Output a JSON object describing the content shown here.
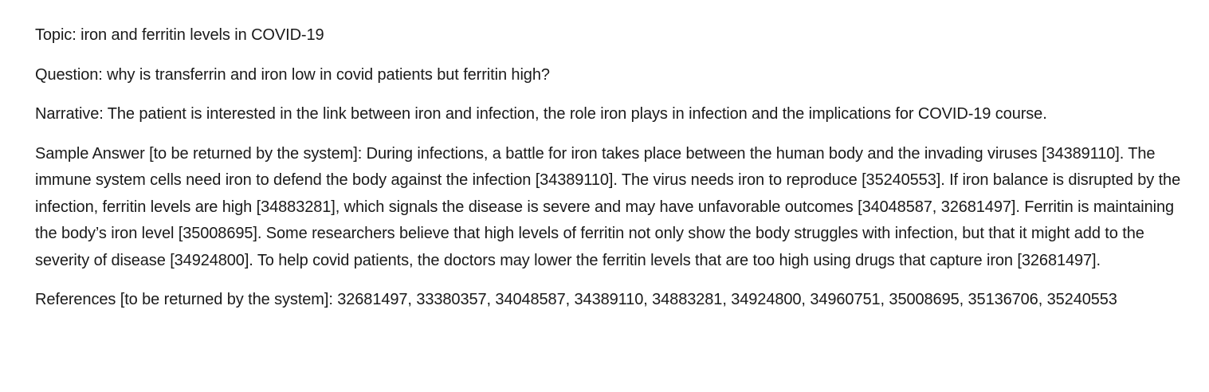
{
  "topic": "Topic: iron and ferritin levels in COVID-19",
  "question": "Question: why is transferrin and iron low in covid patients but ferritin high?",
  "narrative": "Narrative: The patient is interested in the link between iron and infection, the role iron plays in infection and the implications for COVID-19 course.",
  "sample_answer": "Sample Answer [to be returned by the system]: During infections, a battle for iron takes place between the human body and the invading viruses [34389110]. The immune system cells need iron to defend the body against the infection [34389110]. The virus needs iron to reproduce [35240553]. If iron balance is disrupted by the infection, ferritin levels are high [34883281], which signals the disease is severe and may have unfavorable outcomes [34048587, 32681497]. Ferritin is maintaining the body’s iron level [35008695]. Some researchers believe that high levels of ferritin not only show the body struggles with infection, but that it might add to the severity of disease [34924800]. To help covid patients, the doctors may lower the ferritin levels that are too high using drugs that capture iron [32681497].",
  "references": "References [to be returned by the system]: 32681497, 33380357, 34048587, 34389110, 34883281, 34924800, 34960751, 35008695, 35136706, 35240553"
}
